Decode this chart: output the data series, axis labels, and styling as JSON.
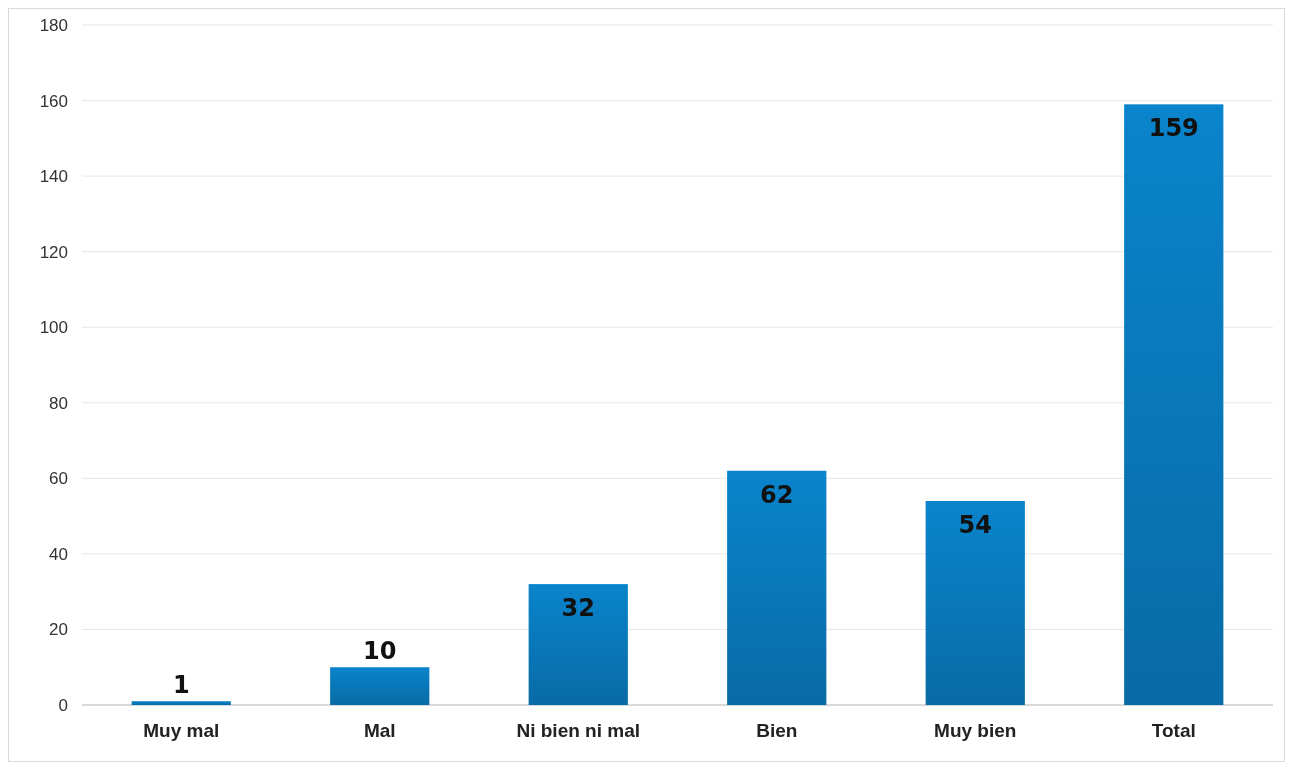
{
  "chart_data": {
    "type": "bar",
    "categories": [
      "Muy mal",
      "Mal",
      "Ni bien ni mal",
      "Bien",
      "Muy bien",
      "Total"
    ],
    "values": [
      1,
      10,
      32,
      62,
      54,
      159
    ],
    "color": "#0a84cc",
    "ylim": [
      0,
      180
    ],
    "yticks": [
      0,
      20,
      40,
      60,
      80,
      100,
      120,
      140,
      160,
      180
    ],
    "grid": "y",
    "data_labels": true
  }
}
